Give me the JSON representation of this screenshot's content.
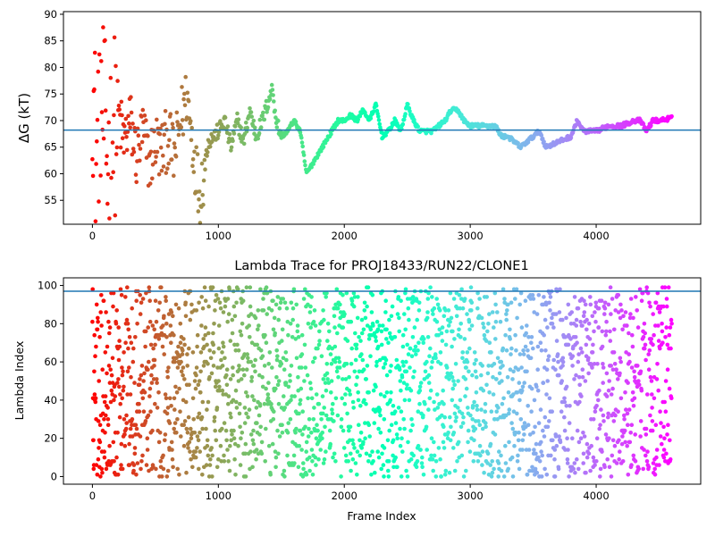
{
  "chart_data": [
    {
      "type": "scatter",
      "title": "",
      "xlabel": "",
      "ylabel": "ΔG (kT)",
      "xlim": [
        -230,
        4830
      ],
      "ylim": [
        50.5,
        90.5
      ],
      "xticks": [
        0,
        1000,
        2000,
        3000,
        4000
      ],
      "yticks": [
        55,
        60,
        65,
        70,
        75,
        80,
        85,
        90
      ],
      "hline": 68.2,
      "hline_color": "#1f77b4",
      "colormap": "rainbow (red at frame 0, through orange, green, cyan, blue to violet at last frame)",
      "series": [
        {
          "description": "running free energy estimate per frame",
          "keypoints_x": [
            0,
            30,
            60,
            90,
            120,
            150,
            200,
            250,
            300,
            350,
            400,
            450,
            500,
            550,
            600,
            650,
            700,
            750,
            800,
            850,
            880,
            920,
            1000,
            1050,
            1100,
            1150,
            1200,
            1250,
            1300,
            1350,
            1400,
            1430,
            1460,
            1500,
            1550,
            1600,
            1650,
            1700,
            1750,
            1800,
            1850,
            1900,
            1950,
            2000,
            2050,
            2100,
            2150,
            2200,
            2250,
            2300,
            2350,
            2400,
            2450,
            2500,
            2550,
            2600,
            2700,
            2800,
            2850,
            2900,
            2950,
            3000,
            3100,
            3200,
            3250,
            3300,
            3400,
            3500,
            3550,
            3600,
            3700,
            3800,
            3850,
            3900,
            4000,
            4100,
            4200,
            4300,
            4350,
            4400,
            4450,
            4500,
            4600
          ],
          "keypoints_y": [
            80,
            62,
            76,
            70,
            62,
            66,
            72,
            66,
            70,
            63,
            68,
            62,
            66,
            64,
            67,
            63,
            70,
            75,
            65,
            56,
            60,
            66,
            68,
            70,
            65,
            70,
            66,
            72,
            67,
            70,
            74,
            76,
            70,
            67,
            68,
            70,
            68,
            60,
            62,
            64,
            66,
            68,
            70,
            70,
            71,
            70,
            72,
            70,
            73,
            67,
            68,
            70,
            68,
            73,
            70,
            68,
            68,
            70,
            72,
            72,
            70,
            69,
            69,
            69,
            67,
            67,
            65,
            67,
            68,
            65,
            66,
            67,
            70,
            68,
            68,
            69,
            69,
            70,
            70,
            68,
            70,
            70,
            70.5
          ]
        }
      ]
    },
    {
      "type": "scatter",
      "title": "Lambda Trace for PROJ18433/RUN22/CLONE1",
      "xlabel": "Frame Index",
      "ylabel": "Lambda Index",
      "xlim": [
        -230,
        4830
      ],
      "ylim": [
        -4,
        104
      ],
      "xticks": [
        0,
        1000,
        2000,
        3000,
        4000
      ],
      "yticks": [
        0,
        20,
        40,
        60,
        80,
        100
      ],
      "hline": 97,
      "hline_color": "#1f77b4",
      "colormap": "rainbow (red at frame 0, through orange, green, cyan, blue to violet at last frame)",
      "series": [
        {
          "description": "lambda window index visited at each frame, values 0-99 spread over the full range, frames 0-4600"
        }
      ]
    }
  ]
}
